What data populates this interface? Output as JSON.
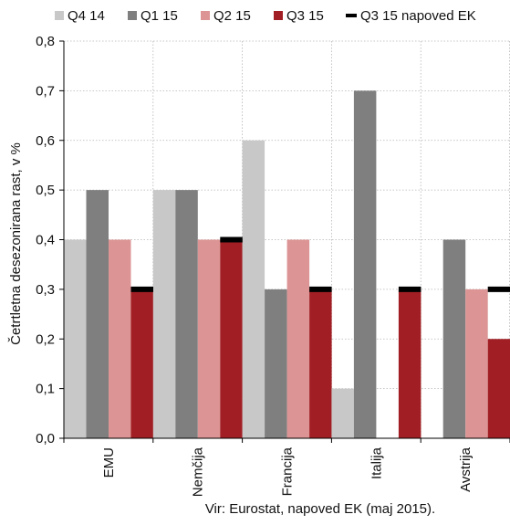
{
  "chart_data": {
    "type": "bar",
    "categories": [
      "EMU",
      "Nemčija",
      "Francija",
      "Italija",
      "Avstrija"
    ],
    "series": [
      {
        "name": "Q4 14",
        "color": "#c8c8c8",
        "values": [
          0.4,
          0.5,
          0.6,
          0.1,
          null
        ]
      },
      {
        "name": "Q1 15",
        "color": "#7f7f7f",
        "values": [
          0.5,
          0.5,
          0.3,
          0.7,
          0.4
        ]
      },
      {
        "name": "Q2 15",
        "color": "#dc9494",
        "values": [
          0.4,
          0.4,
          0.4,
          0.0,
          0.3
        ]
      },
      {
        "name": "Q3 15",
        "color": "#a11f24",
        "values": [
          0.3,
          0.4,
          0.3,
          0.3,
          0.2
        ]
      }
    ],
    "forecast": {
      "name": "Q3 15 napoved EK",
      "color": "#000000",
      "values": [
        0.3,
        0.4,
        0.3,
        0.3,
        0.3
      ]
    },
    "ylabel": "Četrtletna desezonirana rast, v %",
    "ylim": [
      0,
      0.8
    ],
    "yticks": [
      "0,0",
      "0,1",
      "0,2",
      "0,3",
      "0,4",
      "0,5",
      "0,6",
      "0,7",
      "0,8"
    ],
    "source": "Vir: Eurostat, napoved EK (maj 2015).",
    "grid": true,
    "legend_position": "top"
  }
}
